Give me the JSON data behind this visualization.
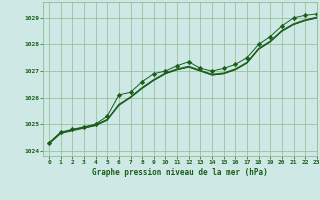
{
  "background_color": "#cde8e5",
  "plot_bg_color": "#cde8e5",
  "grid_color": "#8fbc8f",
  "line_color": "#1a5e1a",
  "marker_color": "#1a5e1a",
  "xlim": [
    -0.5,
    23
  ],
  "ylim": [
    1023.8,
    1029.6
  ],
  "yticks": [
    1024,
    1025,
    1026,
    1027,
    1028,
    1029
  ],
  "xticks": [
    0,
    1,
    2,
    3,
    4,
    5,
    6,
    7,
    8,
    9,
    10,
    11,
    12,
    13,
    14,
    15,
    16,
    17,
    18,
    19,
    20,
    21,
    22,
    23
  ],
  "xlabel": "Graphe pression niveau de la mer (hPa)",
  "series": [
    {
      "y": [
        1024.25,
        1024.65,
        1024.75,
        1024.85,
        1024.95,
        1025.15,
        1025.7,
        1026.0,
        1026.35,
        1026.65,
        1026.9,
        1027.05,
        1027.15,
        1027.0,
        1026.85,
        1026.9,
        1027.05,
        1027.3,
        1027.82,
        1028.1,
        1028.5,
        1028.75,
        1028.9,
        1029.0
      ],
      "marker": null
    },
    {
      "y": [
        1024.28,
        1024.68,
        1024.78,
        1024.88,
        1024.98,
        1025.18,
        1025.73,
        1026.03,
        1026.38,
        1026.68,
        1026.93,
        1027.08,
        1027.18,
        1027.03,
        1026.88,
        1026.93,
        1027.08,
        1027.33,
        1027.85,
        1028.13,
        1028.53,
        1028.78,
        1028.93,
        1029.03
      ],
      "marker": null
    },
    {
      "y": [
        1024.3,
        1024.65,
        1024.8,
        1024.85,
        1024.95,
        1025.15,
        1025.75,
        1026.0,
        1026.35,
        1026.65,
        1026.9,
        1027.05,
        1027.15,
        1027.0,
        1026.85,
        1026.9,
        1027.05,
        1027.3,
        1027.82,
        1028.1,
        1028.5,
        1028.75,
        1028.9,
        1029.0
      ],
      "marker": null
    },
    {
      "y": [
        1024.3,
        1024.7,
        1024.8,
        1024.9,
        1025.0,
        1025.3,
        1026.1,
        1026.2,
        1026.6,
        1026.9,
        1027.0,
        1027.2,
        1027.35,
        1027.1,
        1027.0,
        1027.1,
        1027.25,
        1027.5,
        1028.0,
        1028.3,
        1028.7,
        1029.0,
        1029.1,
        1029.15
      ],
      "marker": "D"
    }
  ]
}
